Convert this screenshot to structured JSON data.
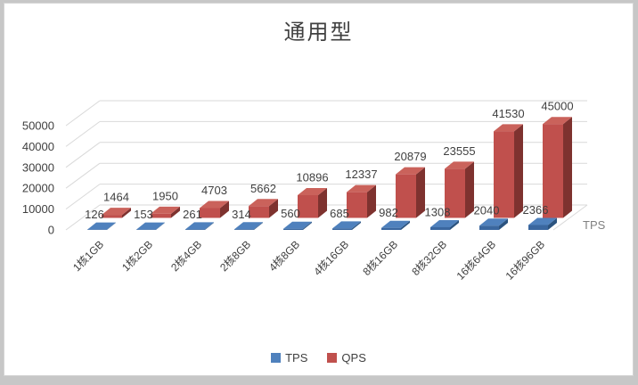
{
  "title": "通用型",
  "chart_data": {
    "type": "bar",
    "variant": "3d-column",
    "title": "通用型",
    "categories": [
      "1核1GB",
      "1核2GB",
      "2核4GB",
      "2核8GB",
      "4核8GB",
      "4核16GB",
      "8核16GB",
      "8核32GB",
      "16核64GB",
      "16核96GB"
    ],
    "series": [
      {
        "name": "TPS",
        "color": "#4F81BD",
        "values": [
          126,
          153,
          261,
          314,
          560,
          685,
          982,
          1308,
          2040,
          2366
        ]
      },
      {
        "name": "QPS",
        "color": "#C0504D",
        "values": [
          1464,
          1950,
          4703,
          5662,
          10896,
          12337,
          20879,
          23555,
          41530,
          45000
        ]
      }
    ],
    "y_ticks": [
      "0",
      "10000",
      "20000",
      "30000",
      "40000",
      "50000"
    ],
    "ylim": [
      0,
      50000
    ],
    "grid": true,
    "data_labels": true,
    "depth_axis_label": "TPS",
    "legend_position": "bottom"
  },
  "legend": {
    "items": [
      {
        "label": "TPS",
        "color": "#4F81BD"
      },
      {
        "label": "QPS",
        "color": "#C0504D"
      }
    ]
  },
  "colors": {
    "frame_background": "#C7C7C7",
    "chart_background": "#FFFFFF",
    "chart_border": "#D4D4D4",
    "gridline": "#D9D9D9",
    "axis_text": "#3F3F3F",
    "data_label_text": "#404040",
    "title_text": "#404040",
    "depth_label_text": "#808080",
    "tps_top": "#4F81BD",
    "tps_front": "#3A679F",
    "tps_side": "#2B537F",
    "qps_front": "#C0504D",
    "qps_top": "#CA625B",
    "qps_side": "#7E322F"
  }
}
